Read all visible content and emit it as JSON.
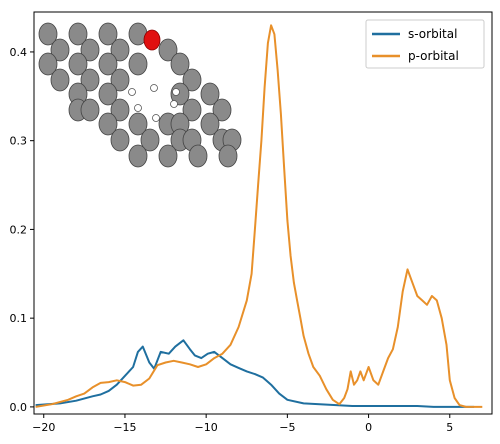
{
  "chart_data": {
    "type": "line",
    "title": "",
    "xlabel": "",
    "ylabel": "",
    "xlim": [
      -20.6,
      7.6
    ],
    "ylim": [
      -0.008,
      0.445
    ],
    "x_ticks": [
      -20,
      -15,
      -10,
      -5,
      0,
      5
    ],
    "y_ticks": [
      0.0,
      0.1,
      0.2,
      0.3,
      0.4
    ],
    "x_tick_labels": [
      "−20",
      "−15",
      "−10",
      "−5",
      "0",
      "5"
    ],
    "y_tick_labels": [
      "0.0",
      "0.1",
      "0.2",
      "0.3",
      "0.4"
    ],
    "grid": false,
    "legend_position": "top-right",
    "series": [
      {
        "name": "s-orbital",
        "color": "#1f6f9f",
        "x": [
          -20.5,
          -19,
          -18,
          -17,
          -16.5,
          -16,
          -15.5,
          -15,
          -14.5,
          -14.2,
          -13.9,
          -13.5,
          -13.2,
          -12.8,
          -12.3,
          -11.9,
          -11.4,
          -11.0,
          -10.7,
          -10.3,
          -9.9,
          -9.5,
          -9.0,
          -8.5,
          -8.0,
          -7.5,
          -7.0,
          -6.5,
          -6.0,
          -5.5,
          -5.0,
          -4.0,
          -3.0,
          -2.0,
          -1.0,
          0,
          1,
          2,
          3,
          4,
          5,
          6.5
        ],
        "y": [
          0.002,
          0.004,
          0.007,
          0.012,
          0.014,
          0.018,
          0.025,
          0.035,
          0.045,
          0.062,
          0.068,
          0.05,
          0.043,
          0.062,
          0.06,
          0.068,
          0.075,
          0.065,
          0.058,
          0.055,
          0.06,
          0.062,
          0.055,
          0.048,
          0.044,
          0.04,
          0.037,
          0.033,
          0.025,
          0.015,
          0.008,
          0.004,
          0.003,
          0.002,
          0.001,
          0.001,
          0.001,
          0.001,
          0.001,
          0.0,
          0.0,
          0.0
        ]
      },
      {
        "name": "p-orbital",
        "color": "#e8902a",
        "x": [
          -20.5,
          -19.5,
          -18.5,
          -18,
          -17.5,
          -17,
          -16.5,
          -16,
          -15.5,
          -15,
          -14.5,
          -14,
          -13.5,
          -13,
          -12.5,
          -12,
          -11.5,
          -11,
          -10.5,
          -10,
          -9.5,
          -9,
          -8.5,
          -8,
          -7.5,
          -7.2,
          -7.0,
          -6.8,
          -6.6,
          -6.4,
          -6.2,
          -6.0,
          -5.8,
          -5.6,
          -5.4,
          -5.2,
          -5.0,
          -4.8,
          -4.6,
          -4.4,
          -4.2,
          -4.0,
          -3.7,
          -3.4,
          -3.0,
          -2.6,
          -2.2,
          -1.8,
          -1.5,
          -1.3,
          -1.1,
          -0.9,
          -0.7,
          -0.5,
          -0.3,
          0,
          0.3,
          0.6,
          0.9,
          1.2,
          1.5,
          1.8,
          2.1,
          2.4,
          2.7,
          3.0,
          3.3,
          3.6,
          3.9,
          4.2,
          4.5,
          4.8,
          5.0,
          5.3,
          5.6,
          6.0,
          7.0
        ],
        "y": [
          0.0,
          0.003,
          0.008,
          0.012,
          0.015,
          0.022,
          0.027,
          0.028,
          0.03,
          0.028,
          0.024,
          0.025,
          0.032,
          0.047,
          0.05,
          0.052,
          0.05,
          0.048,
          0.045,
          0.048,
          0.055,
          0.06,
          0.07,
          0.09,
          0.12,
          0.15,
          0.2,
          0.25,
          0.3,
          0.36,
          0.41,
          0.43,
          0.42,
          0.38,
          0.33,
          0.27,
          0.21,
          0.17,
          0.14,
          0.12,
          0.1,
          0.08,
          0.06,
          0.045,
          0.035,
          0.02,
          0.008,
          0.003,
          0.01,
          0.02,
          0.04,
          0.025,
          0.03,
          0.04,
          0.03,
          0.045,
          0.03,
          0.025,
          0.04,
          0.055,
          0.065,
          0.09,
          0.13,
          0.155,
          0.14,
          0.125,
          0.12,
          0.115,
          0.125,
          0.12,
          0.1,
          0.07,
          0.03,
          0.01,
          0.002,
          0.0,
          0.0
        ]
      }
    ]
  },
  "inset": {
    "description_free": true,
    "carbon_color": "#8a8a8a",
    "highlight_color": "#e01010"
  }
}
